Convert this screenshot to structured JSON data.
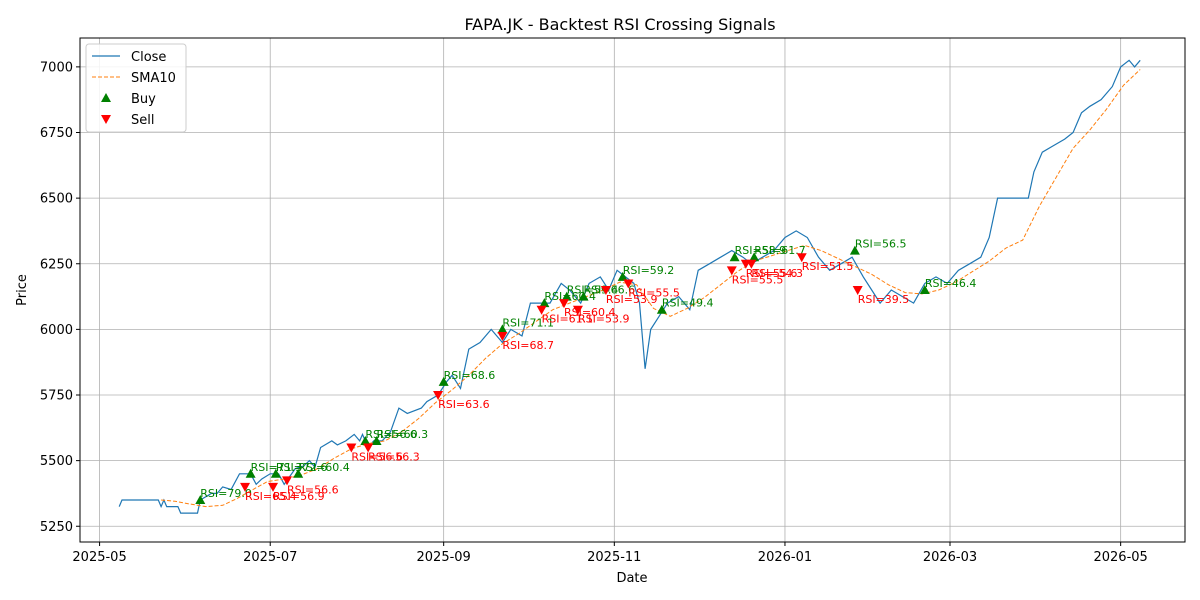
{
  "chart_data": {
    "type": "line",
    "title": "FAPA.JK - Backtest RSI Crossing Signals",
    "xlabel": "Date",
    "ylabel": "Price",
    "xlim": [
      "2025-04-24",
      "2026-05-24"
    ],
    "ylim": [
      5190,
      7110
    ],
    "grid": true,
    "legend_position": "top-left",
    "x_ticks": [
      "2025-05-01",
      "2025-07-01",
      "2025-09-01",
      "2025-11-01",
      "2026-01-01",
      "2026-03-01",
      "2026-05-01"
    ],
    "x_tick_labels": [
      "2025-05",
      "2025-07",
      "2025-09",
      "2025-11",
      "2026-01",
      "2026-03",
      "2026-05"
    ],
    "y_ticks": [
      5250,
      5500,
      5750,
      6000,
      6250,
      6500,
      6750,
      7000
    ],
    "y_tick_labels": [
      "5250",
      "5500",
      "5750",
      "6000",
      "6250",
      "6500",
      "6750",
      "7000"
    ],
    "series": [
      {
        "name": "Close",
        "color": "#1f77b4",
        "style": "solid",
        "points": [
          [
            "2025-05-08",
            5325
          ],
          [
            "2025-05-09",
            5350
          ],
          [
            "2025-05-22",
            5350
          ],
          [
            "2025-05-23",
            5325
          ],
          [
            "2025-05-24",
            5350
          ],
          [
            "2025-05-25",
            5325
          ],
          [
            "2025-05-29",
            5325
          ],
          [
            "2025-05-30",
            5300
          ],
          [
            "2025-06-05",
            5300
          ],
          [
            "2025-06-06",
            5350
          ],
          [
            "2025-06-10",
            5375
          ],
          [
            "2025-06-12",
            5375
          ],
          [
            "2025-06-14",
            5400
          ],
          [
            "2025-06-17",
            5390
          ],
          [
            "2025-06-20",
            5450
          ],
          [
            "2025-06-24",
            5450
          ],
          [
            "2025-06-26",
            5410
          ],
          [
            "2025-06-28",
            5430
          ],
          [
            "2025-07-01",
            5450
          ],
          [
            "2025-07-04",
            5450
          ],
          [
            "2025-07-06",
            5410
          ],
          [
            "2025-07-08",
            5440
          ],
          [
            "2025-07-10",
            5470
          ],
          [
            "2025-07-13",
            5480
          ],
          [
            "2025-07-15",
            5500
          ],
          [
            "2025-07-17",
            5475
          ],
          [
            "2025-07-19",
            5550
          ],
          [
            "2025-07-23",
            5575
          ],
          [
            "2025-07-25",
            5560
          ],
          [
            "2025-07-28",
            5575
          ],
          [
            "2025-07-31",
            5600
          ],
          [
            "2025-08-02",
            5575
          ],
          [
            "2025-08-03",
            5600
          ],
          [
            "2025-08-05",
            5550
          ],
          [
            "2025-08-07",
            5575
          ],
          [
            "2025-08-10",
            5575
          ],
          [
            "2025-08-13",
            5610
          ],
          [
            "2025-08-16",
            5700
          ],
          [
            "2025-08-19",
            5680
          ],
          [
            "2025-08-24",
            5700
          ],
          [
            "2025-08-26",
            5725
          ],
          [
            "2025-08-30",
            5750
          ],
          [
            "2025-09-02",
            5800
          ],
          [
            "2025-09-04",
            5825
          ],
          [
            "2025-09-07",
            5775
          ],
          [
            "2025-09-10",
            5925
          ],
          [
            "2025-09-14",
            5950
          ],
          [
            "2025-09-18",
            6000
          ],
          [
            "2025-09-22",
            5950
          ],
          [
            "2025-09-25",
            6000
          ],
          [
            "2025-09-29",
            5975
          ],
          [
            "2025-10-02",
            6100
          ],
          [
            "2025-10-06",
            6100
          ],
          [
            "2025-10-09",
            6100
          ],
          [
            "2025-10-13",
            6175
          ],
          [
            "2025-10-16",
            6150
          ],
          [
            "2025-10-20",
            6100
          ],
          [
            "2025-10-23",
            6175
          ],
          [
            "2025-10-27",
            6200
          ],
          [
            "2025-10-30",
            6150
          ],
          [
            "2025-11-02",
            6225
          ],
          [
            "2025-11-05",
            6200
          ],
          [
            "2025-11-08",
            6175
          ],
          [
            "2025-11-10",
            6100
          ],
          [
            "2025-11-12",
            5850
          ],
          [
            "2025-11-14",
            6000
          ],
          [
            "2025-11-17",
            6050
          ],
          [
            "2025-11-20",
            6100
          ],
          [
            "2025-11-24",
            6125
          ],
          [
            "2025-11-28",
            6075
          ],
          [
            "2025-12-01",
            6225
          ],
          [
            "2025-12-05",
            6250
          ],
          [
            "2025-12-09",
            6275
          ],
          [
            "2025-12-13",
            6300
          ],
          [
            "2025-12-17",
            6275
          ],
          [
            "2025-12-20",
            6250
          ],
          [
            "2025-12-24",
            6275
          ],
          [
            "2025-12-28",
            6300
          ],
          [
            "2026-01-01",
            6350
          ],
          [
            "2026-01-05",
            6375
          ],
          [
            "2026-01-09",
            6350
          ],
          [
            "2026-01-13",
            6275
          ],
          [
            "2026-01-17",
            6225
          ],
          [
            "2026-01-21",
            6250
          ],
          [
            "2026-01-25",
            6275
          ],
          [
            "2026-01-29",
            6200
          ],
          [
            "2026-02-01",
            6150
          ],
          [
            "2026-02-04",
            6100
          ],
          [
            "2026-02-08",
            6150
          ],
          [
            "2026-02-12",
            6125
          ],
          [
            "2026-02-16",
            6100
          ],
          [
            "2026-02-20",
            6175
          ],
          [
            "2026-02-24",
            6200
          ],
          [
            "2026-02-28",
            6175
          ],
          [
            "2026-03-04",
            6225
          ],
          [
            "2026-03-08",
            6250
          ],
          [
            "2026-03-12",
            6275
          ],
          [
            "2026-03-15",
            6350
          ],
          [
            "2026-03-18",
            6500
          ],
          [
            "2026-03-22",
            6500
          ],
          [
            "2026-03-26",
            6500
          ],
          [
            "2026-03-29",
            6500
          ],
          [
            "2026-03-31",
            6600
          ],
          [
            "2026-04-03",
            6675
          ],
          [
            "2026-04-07",
            6700
          ],
          [
            "2026-04-11",
            6725
          ],
          [
            "2026-04-14",
            6750
          ],
          [
            "2026-04-17",
            6825
          ],
          [
            "2026-04-20",
            6850
          ],
          [
            "2026-04-24",
            6875
          ],
          [
            "2026-04-28",
            6925
          ],
          [
            "2026-05-01",
            7000
          ],
          [
            "2026-05-04",
            7025
          ],
          [
            "2026-05-06",
            7000
          ],
          [
            "2026-05-08",
            7025
          ]
        ]
      },
      {
        "name": "SMA10",
        "color": "#ff7f0e",
        "style": "dashed",
        "points": [
          [
            "2025-05-23",
            5350
          ],
          [
            "2025-05-28",
            5345
          ],
          [
            "2025-06-02",
            5335
          ],
          [
            "2025-06-08",
            5325
          ],
          [
            "2025-06-14",
            5330
          ],
          [
            "2025-06-19",
            5355
          ],
          [
            "2025-06-24",
            5385
          ],
          [
            "2025-06-30",
            5420
          ],
          [
            "2025-07-06",
            5430
          ],
          [
            "2025-07-12",
            5445
          ],
          [
            "2025-07-18",
            5470
          ],
          [
            "2025-07-24",
            5510
          ],
          [
            "2025-07-30",
            5545
          ],
          [
            "2025-08-05",
            5565
          ],
          [
            "2025-08-11",
            5575
          ],
          [
            "2025-08-17",
            5610
          ],
          [
            "2025-08-23",
            5660
          ],
          [
            "2025-08-29",
            5720
          ],
          [
            "2025-09-04",
            5770
          ],
          [
            "2025-09-10",
            5825
          ],
          [
            "2025-09-16",
            5890
          ],
          [
            "2025-09-22",
            5945
          ],
          [
            "2025-09-28",
            5985
          ],
          [
            "2025-10-04",
            6030
          ],
          [
            "2025-10-10",
            6075
          ],
          [
            "2025-10-16",
            6100
          ],
          [
            "2025-10-22",
            6125
          ],
          [
            "2025-10-28",
            6150
          ],
          [
            "2025-11-03",
            6180
          ],
          [
            "2025-11-09",
            6170
          ],
          [
            "2025-11-15",
            6080
          ],
          [
            "2025-11-21",
            6050
          ],
          [
            "2025-11-27",
            6080
          ],
          [
            "2025-12-03",
            6120
          ],
          [
            "2025-12-09",
            6170
          ],
          [
            "2025-12-15",
            6220
          ],
          [
            "2025-12-21",
            6260
          ],
          [
            "2025-12-27",
            6280
          ],
          [
            "2026-01-02",
            6300
          ],
          [
            "2026-01-08",
            6320
          ],
          [
            "2026-01-14",
            6300
          ],
          [
            "2026-01-20",
            6270
          ],
          [
            "2026-01-26",
            6240
          ],
          [
            "2026-02-01",
            6210
          ],
          [
            "2026-02-07",
            6170
          ],
          [
            "2026-02-13",
            6140
          ],
          [
            "2026-02-19",
            6135
          ],
          [
            "2026-02-25",
            6150
          ],
          [
            "2026-03-03",
            6180
          ],
          [
            "2026-03-09",
            6220
          ],
          [
            "2026-03-15",
            6260
          ],
          [
            "2026-03-21",
            6310
          ],
          [
            "2026-03-27",
            6340
          ],
          [
            "2026-04-02",
            6470
          ],
          [
            "2026-04-08",
            6580
          ],
          [
            "2026-04-14",
            6690
          ],
          [
            "2026-04-20",
            6760
          ],
          [
            "2026-04-26",
            6840
          ],
          [
            "2026-05-02",
            6930
          ],
          [
            "2026-05-08",
            6990
          ]
        ]
      }
    ],
    "markers": [
      {
        "name": "Buy",
        "color": "#008000",
        "shape": "triangle-up",
        "points": [
          {
            "x": "2025-06-06",
            "y": 5350,
            "label": "RSI=79.0"
          },
          {
            "x": "2025-06-24",
            "y": 5450,
            "label": "RSI=71.3"
          },
          {
            "x": "2025-07-03",
            "y": 5450,
            "label": "RSI=72.6"
          },
          {
            "x": "2025-07-11",
            "y": 5450,
            "label": "RSI=60.4"
          },
          {
            "x": "2025-08-04",
            "y": 5575,
            "label": "RSI=56.6"
          },
          {
            "x": "2025-08-08",
            "y": 5575,
            "label": "RSI=60.3"
          },
          {
            "x": "2025-09-01",
            "y": 5800,
            "label": "RSI=68.6"
          },
          {
            "x": "2025-09-22",
            "y": 6000,
            "label": "RSI=71.1"
          },
          {
            "x": "2025-10-07",
            "y": 6100,
            "label": "RSI=60.4"
          },
          {
            "x": "2025-10-15",
            "y": 6125,
            "label": "RSI=59.4"
          },
          {
            "x": "2025-10-21",
            "y": 6125,
            "label": "RSI=66.6"
          },
          {
            "x": "2025-11-04",
            "y": 6200,
            "label": "RSI=59.2"
          },
          {
            "x": "2025-11-18",
            "y": 6075,
            "label": "RSI=49.4"
          },
          {
            "x": "2025-12-14",
            "y": 6275,
            "label": "RSI=58.9"
          },
          {
            "x": "2025-12-21",
            "y": 6275,
            "label": "RSI=61.7"
          },
          {
            "x": "2026-01-26",
            "y": 6300,
            "label": "RSI=56.5"
          },
          {
            "x": "2026-02-20",
            "y": 6150,
            "label": "RSI=46.4"
          }
        ]
      },
      {
        "name": "Sell",
        "color": "#ff0000",
        "shape": "triangle-down",
        "points": [
          {
            "x": "2025-06-22",
            "y": 5400,
            "label": "RSI=65.4"
          },
          {
            "x": "2025-07-02",
            "y": 5400,
            "label": "RSI=56.9"
          },
          {
            "x": "2025-07-07",
            "y": 5425,
            "label": "RSI=56.6"
          },
          {
            "x": "2025-07-30",
            "y": 5550,
            "label": "RSI=56.6"
          },
          {
            "x": "2025-08-05",
            "y": 5550,
            "label": "RSI=56.3"
          },
          {
            "x": "2025-08-30",
            "y": 5750,
            "label": "RSI=63.6"
          },
          {
            "x": "2025-09-22",
            "y": 5975,
            "label": "RSI=68.7"
          },
          {
            "x": "2025-10-06",
            "y": 6075,
            "label": "RSI=61.1"
          },
          {
            "x": "2025-10-14",
            "y": 6100,
            "label": "RSI=60.4"
          },
          {
            "x": "2025-10-19",
            "y": 6075,
            "label": "RSI=53.9"
          },
          {
            "x": "2025-10-29",
            "y": 6150,
            "label": "RSI=53.9"
          },
          {
            "x": "2025-11-06",
            "y": 6175,
            "label": "RSI=55.5"
          },
          {
            "x": "2025-12-13",
            "y": 6225,
            "label": "RSI=55.5"
          },
          {
            "x": "2025-12-18",
            "y": 6250,
            "label": "RSI=55.6"
          },
          {
            "x": "2025-12-20",
            "y": 6250,
            "label": "RSI=54.3"
          },
          {
            "x": "2026-01-07",
            "y": 6275,
            "label": "RSI=51.5"
          },
          {
            "x": "2026-01-27",
            "y": 6150,
            "label": "RSI=39.5"
          }
        ]
      }
    ]
  }
}
